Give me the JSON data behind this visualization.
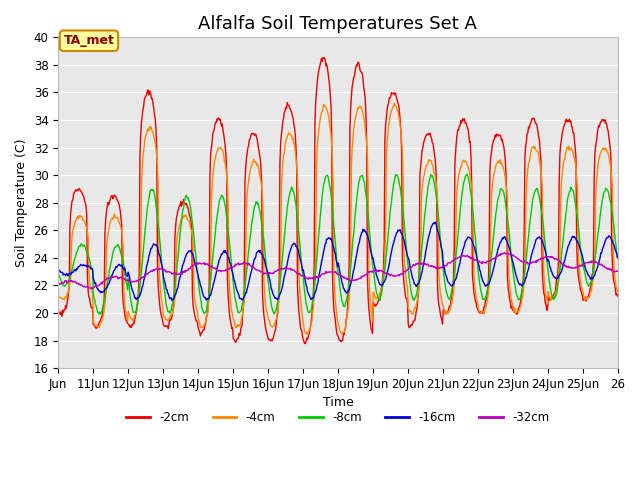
{
  "title": "Alfalfa Soil Temperatures Set A",
  "ylabel": "Soil Temperature (C)",
  "xlabel": "Time",
  "ylim": [
    16,
    40
  ],
  "xlim": [
    0,
    16
  ],
  "xtick_positions": [
    0,
    1,
    2,
    3,
    4,
    5,
    6,
    7,
    8,
    9,
    10,
    11,
    12,
    13,
    14,
    15,
    16
  ],
  "xtick_labels": [
    "Jun",
    "11Jun",
    "12Jun",
    "13Jun",
    "14Jun",
    "15Jun",
    "16Jun",
    "17Jun",
    "18Jun",
    "19Jun",
    "20Jun",
    "21Jun",
    "22Jun",
    "23Jun",
    "24Jun",
    "25Jun",
    "26"
  ],
  "colors": {
    "-2cm": "#ee0000",
    "-4cm": "#ff8800",
    "-8cm": "#00cc00",
    "-16cm": "#0000dd",
    "-32cm": "#bb00bb"
  },
  "legend_labels": [
    "-2cm",
    "-4cm",
    "-8cm",
    "-16cm",
    "-32cm"
  ],
  "annotation_text": "TA_met",
  "bg_color": "#e8e8e8",
  "title_fontsize": 13,
  "axis_fontsize": 9,
  "tick_fontsize": 8.5
}
